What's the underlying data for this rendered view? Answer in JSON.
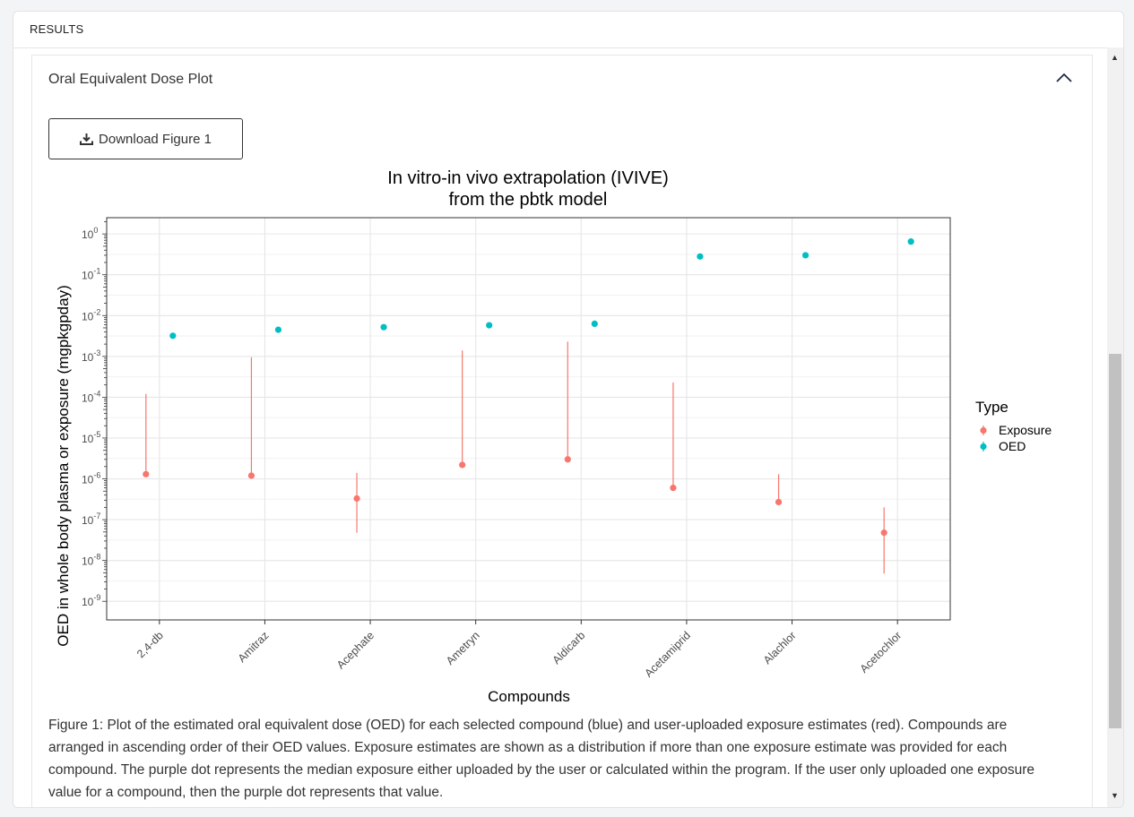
{
  "header": {
    "title": "RESULTS"
  },
  "panel": {
    "title": "Oral Equivalent Dose Plot",
    "download_label": "Download Figure 1"
  },
  "caption": "Figure 1: Plot of the estimated oral equivalent dose (OED) for each selected compound (blue) and user-uploaded exposure estimates (red). Compounds are arranged in ascending order of their OED values. Exposure estimates are shown as a distribution if more than one exposure estimate was provided for each compound. The purple dot represents the median exposure either uploaded by the user or calculated within the program. If the user only uploaded one exposure value for a compound, then the purple dot represents that value.",
  "colors": {
    "exposure": "#F8766D",
    "oed": "#00BFC4"
  },
  "chart_data": {
    "type": "scatter",
    "title": [
      "In vitro-in vivo extrapolation (IVIVE)",
      "from the pbtk model"
    ],
    "xlabel": "Compounds",
    "ylabel": "OED in whole body plasma or exposure (mgpkgpday)",
    "y_scale": "log10",
    "ylim": [
      3.5e-10,
      2.5
    ],
    "y_tick_exponents": [
      0,
      -1,
      -2,
      -3,
      -4,
      -5,
      -6,
      -7,
      -8,
      -9
    ],
    "categories": [
      "2,4-db",
      "Amitraz",
      "Acephate",
      "Ametryn",
      "Aldicarb",
      "Acetamiprid",
      "Alachlor",
      "Acetochlor"
    ],
    "legend": {
      "title": "Type",
      "position": "right",
      "entries": [
        "Exposure",
        "OED"
      ]
    },
    "series": [
      {
        "name": "Exposure",
        "median": [
          1.3e-06,
          1.2e-06,
          3.3e-07,
          2.2e-06,
          3e-06,
          6e-07,
          2.7e-07,
          4.8e-08
        ],
        "low": [
          1.3e-06,
          1.2e-06,
          4.8e-08,
          2.2e-06,
          3e-06,
          6e-07,
          2.7e-07,
          4.8e-09
        ],
        "high": [
          0.00012,
          0.00095,
          1.4e-06,
          0.0014,
          0.0023,
          0.00023,
          1.3e-06,
          2e-07
        ]
      },
      {
        "name": "OED",
        "values": [
          0.0032,
          0.0045,
          0.0052,
          0.0058,
          0.0063,
          0.28,
          0.3,
          0.65
        ]
      }
    ]
  }
}
